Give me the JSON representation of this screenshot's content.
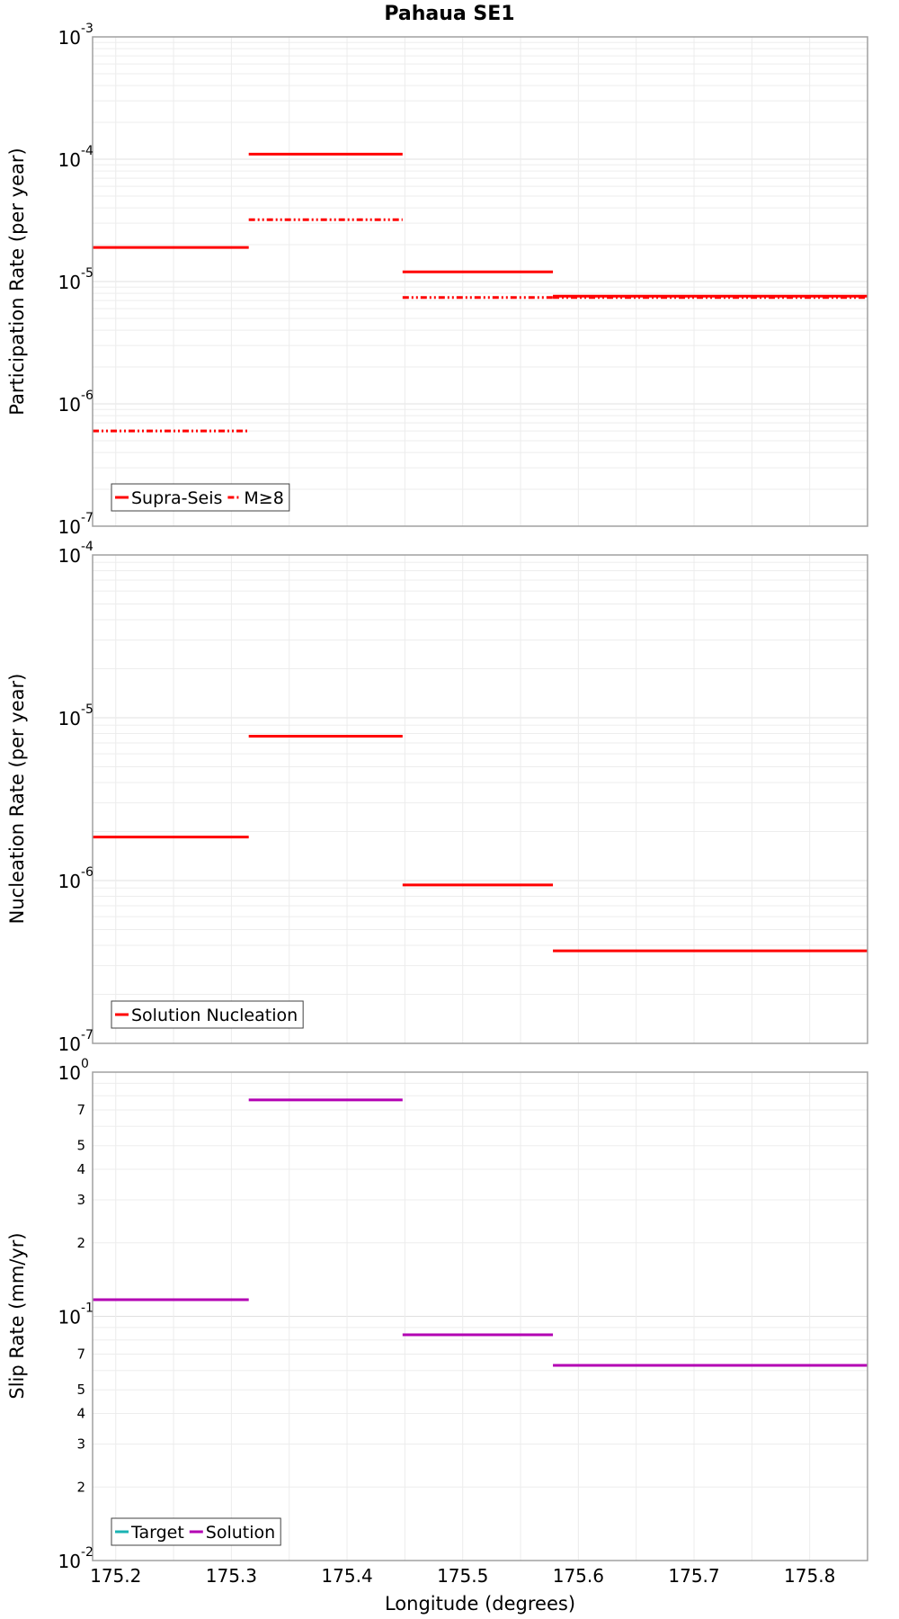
{
  "chart_data": [
    {
      "type": "line",
      "title": "Pahaua SE1",
      "ylabel": "Participation Rate (per year)",
      "yscale": "log",
      "ylim": [
        1e-07,
        0.001
      ],
      "xlim": [
        175.18,
        175.85
      ],
      "ytick_labels": [
        {
          "base": "10",
          "exp": "-7"
        },
        {
          "base": "10",
          "exp": "-6"
        },
        {
          "base": "10",
          "exp": "-5"
        },
        {
          "base": "10",
          "exp": "-4"
        },
        {
          "base": "10",
          "exp": "-3"
        }
      ],
      "grid": true,
      "legend_position": "bottom-left",
      "series": [
        {
          "name": "Supra-Seis",
          "color": "#ff0000",
          "style": "solid",
          "segments": [
            {
              "x": [
                175.18,
                175.315
              ],
              "y": 1.9e-05
            },
            {
              "x": [
                175.315,
                175.448
              ],
              "y": 0.00011
            },
            {
              "x": [
                175.448,
                175.578
              ],
              "y": 1.2e-05
            },
            {
              "x": [
                175.578,
                175.85
              ],
              "y": 7.6e-06
            }
          ]
        },
        {
          "name": "M≥8",
          "color": "#ff0000",
          "style": "dash-dot-dot",
          "segments": [
            {
              "x": [
                175.18,
                175.315
              ],
              "y": 6e-07
            },
            {
              "x": [
                175.315,
                175.448
              ],
              "y": 3.2e-05
            },
            {
              "x": [
                175.448,
                175.578
              ],
              "y": 7.4e-06
            },
            {
              "x": [
                175.578,
                175.85
              ],
              "y": 7.4e-06
            }
          ]
        }
      ]
    },
    {
      "type": "line",
      "ylabel": "Nucleation Rate (per year)",
      "yscale": "log",
      "ylim": [
        1e-07,
        0.0001
      ],
      "xlim": [
        175.18,
        175.85
      ],
      "ytick_labels": [
        {
          "base": "10",
          "exp": "-7"
        },
        {
          "base": "10",
          "exp": "-6"
        },
        {
          "base": "10",
          "exp": "-5"
        },
        {
          "base": "10",
          "exp": "-4"
        }
      ],
      "grid": true,
      "legend_position": "bottom-left",
      "series": [
        {
          "name": "Solution Nucleation",
          "color": "#ff0000",
          "style": "solid",
          "segments": [
            {
              "x": [
                175.18,
                175.315
              ],
              "y": 1.85e-06
            },
            {
              "x": [
                175.315,
                175.448
              ],
              "y": 7.7e-06
            },
            {
              "x": [
                175.448,
                175.578
              ],
              "y": 9.4e-07
            },
            {
              "x": [
                175.578,
                175.85
              ],
              "y": 3.7e-07
            }
          ]
        }
      ]
    },
    {
      "type": "line",
      "ylabel": "Slip Rate (mm/yr)",
      "xlabel": "Longitude (degrees)",
      "yscale": "log",
      "ylim": [
        0.01,
        1
      ],
      "xlim": [
        175.18,
        175.85
      ],
      "ytick_labels": [
        {
          "base": "10",
          "exp": "-2"
        },
        {
          "base": "10",
          "exp": "-1"
        },
        {
          "base": "10",
          "exp": "0"
        }
      ],
      "minor_tick_labels": [
        "2",
        "3",
        "4",
        "5",
        "7",
        "2",
        "3",
        "4",
        "5",
        "7"
      ],
      "minor_tick_values": [
        0.02,
        0.03,
        0.04,
        0.05,
        0.07,
        0.2,
        0.3,
        0.4,
        0.5,
        0.7
      ],
      "x_tick_labels": [
        "175.2",
        "175.3",
        "175.4",
        "175.5",
        "175.6",
        "175.7",
        "175.8"
      ],
      "x_tick_values": [
        175.2,
        175.3,
        175.4,
        175.5,
        175.6,
        175.7,
        175.8
      ],
      "grid": true,
      "legend_position": "bottom-left",
      "series": [
        {
          "name": "Target",
          "color": "#1ab3b3",
          "style": "solid",
          "segments": []
        },
        {
          "name": "Solution",
          "color": "#b300b3",
          "style": "solid",
          "segments": [
            {
              "x": [
                175.18,
                175.315
              ],
              "y": 0.117
            },
            {
              "x": [
                175.315,
                175.448
              ],
              "y": 0.77
            },
            {
              "x": [
                175.448,
                175.578
              ],
              "y": 0.084
            },
            {
              "x": [
                175.578,
                175.85
              ],
              "y": 0.063
            }
          ]
        }
      ]
    }
  ]
}
